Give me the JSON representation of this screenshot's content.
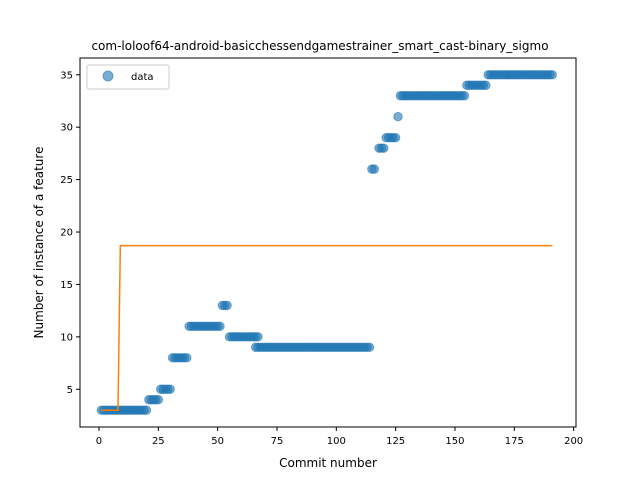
{
  "chart_data": {
    "type": "scatter",
    "title": "com-loloof64-android-basicchessendgamestrainer_smart_cast-binary_sigmo",
    "xlabel": "Commit number",
    "ylabel": "Number of instance of a feature",
    "xlim": [
      -8,
      201
    ],
    "ylim": [
      1.4,
      36.6
    ],
    "xticks": [
      0,
      25,
      50,
      75,
      100,
      125,
      150,
      175,
      200
    ],
    "yticks": [
      5,
      10,
      15,
      20,
      25,
      30,
      35
    ],
    "grid": false,
    "legend": {
      "position": "top-left",
      "entries": [
        "data"
      ]
    },
    "colors": {
      "data": "#1f77b4",
      "fit": "#ff7f0e"
    },
    "segments": [
      {
        "x_start": 1,
        "x_end": 20,
        "y": 3
      },
      {
        "x_start": 21,
        "x_end": 25,
        "y": 4
      },
      {
        "x_start": 26,
        "x_end": 30,
        "y": 5
      },
      {
        "x_start": 31,
        "x_end": 37,
        "y": 8
      },
      {
        "x_start": 38,
        "x_end": 51,
        "y": 11
      },
      {
        "x_start": 52,
        "x_end": 54,
        "y": 13
      },
      {
        "x_start": 55,
        "x_end": 67,
        "y": 10
      },
      {
        "x_start": 66,
        "x_end": 114,
        "y": 9
      },
      {
        "x_start": 115,
        "x_end": 116,
        "y": 26
      },
      {
        "x_start": 118,
        "x_end": 120,
        "y": 28
      },
      {
        "x_start": 121,
        "x_end": 125,
        "y": 29
      },
      {
        "x_start": 126,
        "x_end": 126,
        "y": 31
      },
      {
        "x_start": 127,
        "x_end": 154,
        "y": 33
      },
      {
        "x_start": 155,
        "x_end": 163,
        "y": 34
      },
      {
        "x_start": 164,
        "x_end": 191,
        "y": 35
      }
    ],
    "fit_line": {
      "x": [
        1,
        8,
        9,
        191
      ],
      "y": [
        3,
        3,
        18.7,
        18.7
      ]
    }
  }
}
